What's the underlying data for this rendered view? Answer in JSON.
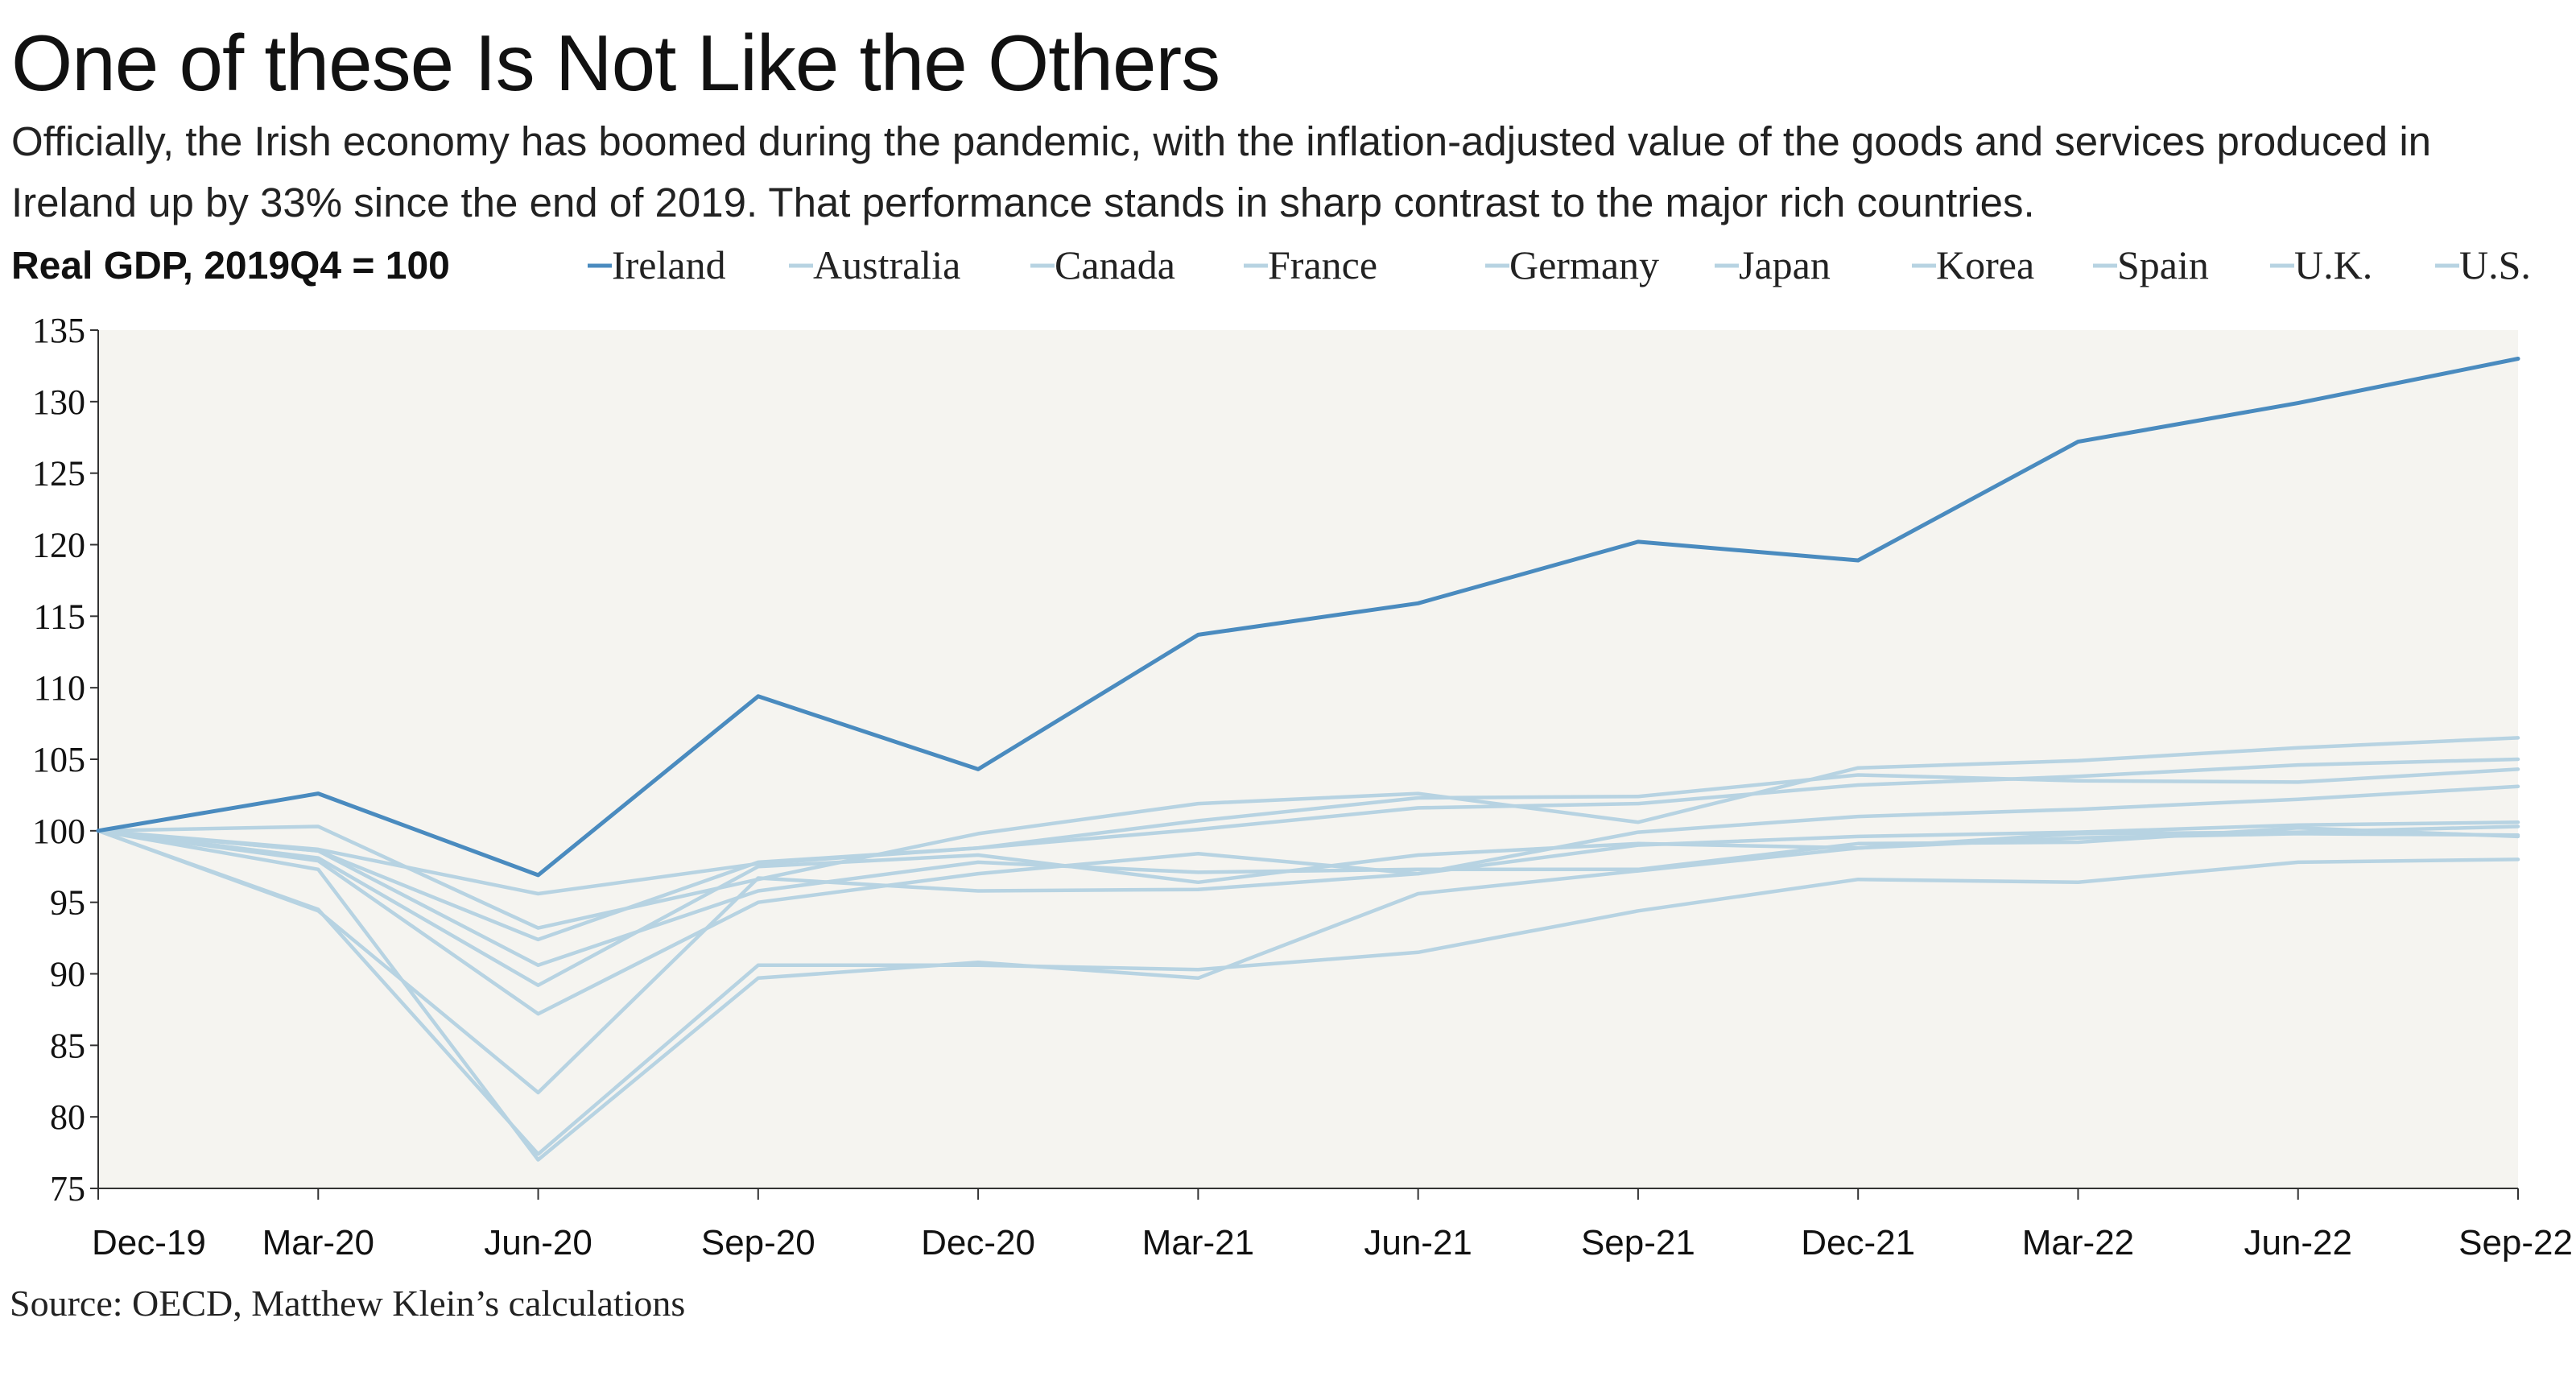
{
  "title": "One of these Is Not Like the Others",
  "subtitle": "Officially, the Irish economy has boomed during the pandemic, with the inflation-adjusted value of the goods and services produced in Ireland up by 33% since the end of 2019. That performance stands in sharp contrast to the major rich countries.",
  "source": "Source: OECD, Matthew Klein’s calculations",
  "colors": {
    "highlight": "#4a8bbf",
    "others": "#b7d3e2",
    "plot_background": "#f5f4f0",
    "axis": "#333333",
    "text": "#111111"
  },
  "chart_data": {
    "type": "line",
    "ylabel": "Real GDP, 2019Q4 = 100",
    "xlabel": "",
    "x": [
      "Dec-19",
      "Mar-20",
      "Jun-20",
      "Sep-20",
      "Dec-20",
      "Mar-21",
      "Jun-21",
      "Sep-21",
      "Dec-21",
      "Mar-22",
      "Jun-22",
      "Sep-22"
    ],
    "ylim": [
      75,
      135
    ],
    "yticks": [
      75,
      80,
      85,
      90,
      95,
      100,
      105,
      110,
      115,
      120,
      125,
      130,
      135
    ],
    "grid": false,
    "legend_position": "top",
    "highlight_series": "Ireland",
    "series": [
      {
        "name": "Ireland",
        "values": [
          100,
          102.6,
          96.9,
          109.4,
          104.3,
          113.7,
          115.9,
          120.2,
          118.9,
          127.2,
          129.9,
          133.0
        ]
      },
      {
        "name": "Australia",
        "values": [
          100,
          100.3,
          93.2,
          96.6,
          99.8,
          101.9,
          102.6,
          100.6,
          104.4,
          104.9,
          105.8,
          106.5
        ]
      },
      {
        "name": "Canada",
        "values": [
          100,
          97.9,
          87.2,
          95.0,
          97.0,
          98.4,
          97.0,
          99.9,
          101.0,
          101.5,
          102.2,
          103.1
        ]
      },
      {
        "name": "France",
        "values": [
          100,
          94.4,
          81.7,
          96.7,
          95.8,
          95.9,
          97.0,
          99.0,
          99.6,
          99.9,
          100.4,
          100.6
        ]
      },
      {
        "name": "Germany",
        "values": [
          100,
          98.1,
          89.2,
          97.5,
          98.3,
          96.4,
          98.3,
          99.1,
          98.8,
          99.8,
          99.9,
          100.3
        ]
      },
      {
        "name": "Japan",
        "values": [
          100,
          98.6,
          90.6,
          95.8,
          97.8,
          97.1,
          97.3,
          97.3,
          99.1,
          99.2,
          100.2,
          99.6
        ]
      },
      {
        "name": "Korea",
        "values": [
          100,
          98.7,
          95.6,
          97.7,
          98.8,
          100.1,
          101.6,
          101.9,
          103.2,
          103.8,
          104.6,
          105.0
        ]
      },
      {
        "name": "Spain",
        "values": [
          100,
          94.5,
          77.4,
          90.6,
          90.6,
          90.3,
          91.5,
          94.4,
          96.6,
          96.4,
          97.8,
          98.0
        ]
      },
      {
        "name": "U.K.",
        "values": [
          100,
          97.3,
          77.0,
          89.7,
          90.8,
          89.7,
          95.6,
          97.2,
          98.8,
          99.5,
          99.8,
          99.7
        ]
      },
      {
        "name": "U.S.",
        "values": [
          100,
          98.6,
          92.4,
          97.8,
          98.8,
          100.7,
          102.3,
          102.4,
          103.9,
          103.5,
          103.4,
          104.3
        ]
      }
    ]
  }
}
